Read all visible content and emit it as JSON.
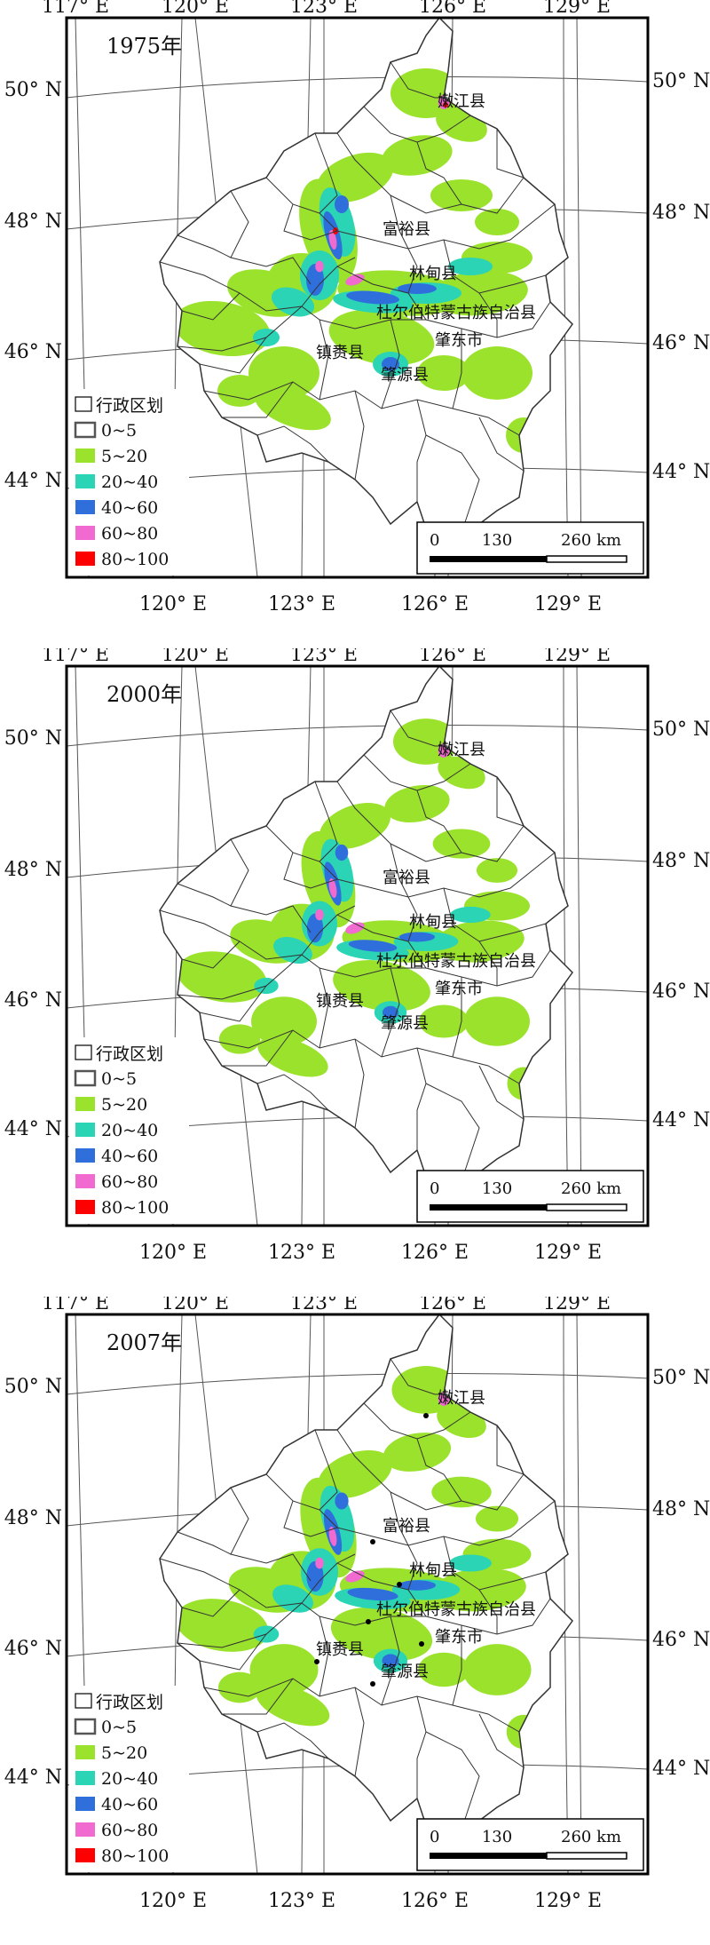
{
  "colors": {
    "frame": "#000000",
    "grid": "#555555",
    "boundary": "#333333",
    "c0_5": "#ffffff",
    "c5_20": "#9be22c",
    "c20_40": "#2ad4b5",
    "c40_60": "#2f6fdc",
    "c60_80": "#f06ad0",
    "c80_100": "#ff0000"
  },
  "axes": {
    "top_lon": [
      "117° E",
      "120° E",
      "123° E",
      "126° E",
      "129° E"
    ],
    "bottom_lon": [
      "120° E",
      "123° E",
      "126° E",
      "129° E"
    ],
    "left_lat": [
      "50° N",
      "48° N",
      "46° N",
      "44° N"
    ],
    "right_lat": [
      "50° N",
      "48° N",
      "46° N",
      "44° N"
    ]
  },
  "legend": {
    "title": "行政区划",
    "items": [
      {
        "label": "0~5",
        "color": "#ffffff"
      },
      {
        "label": "5~20",
        "color": "#9be22c"
      },
      {
        "label": "20~40",
        "color": "#2ad4b5"
      },
      {
        "label": "40~60",
        "color": "#2f6fdc"
      },
      {
        "label": "60~80",
        "color": "#f06ad0"
      },
      {
        "label": "80~100",
        "color": "#ff0000"
      }
    ]
  },
  "scale_bar": {
    "labels": [
      "0",
      "130",
      "260 km"
    ]
  },
  "places": [
    "嫩江县",
    "富裕县",
    "林甸县",
    "杜尔伯特蒙古族自治县",
    "肇东市",
    "镇赉县",
    "肇源县"
  ],
  "panels": [
    {
      "year": "1975年",
      "class_intensity": 1.0
    },
    {
      "year": "2000年",
      "class_intensity": 0.7
    },
    {
      "year": "2007年",
      "class_intensity": 0.85
    }
  ]
}
